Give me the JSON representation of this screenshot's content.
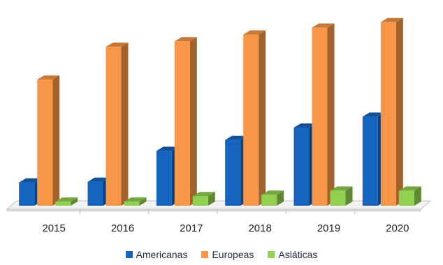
{
  "chart_data": {
    "type": "bar",
    "title": "",
    "xlabel": "",
    "ylabel": "",
    "categories": [
      "2015",
      "2016",
      "2017",
      "2018",
      "2019",
      "2020"
    ],
    "series": [
      {
        "name": "Americanas",
        "color": "#1565c0",
        "values": [
          34,
          35,
          80,
          96,
          114,
          130
        ]
      },
      {
        "name": "Europeas",
        "color": "#f79646",
        "values": [
          184,
          232,
          240,
          250,
          260,
          268
        ]
      },
      {
        "name": "Asiáticas",
        "color": "#92d050",
        "values": [
          6,
          6,
          14,
          16,
          22,
          22
        ]
      }
    ],
    "ylim": [
      0,
      280
    ],
    "grid": false,
    "legend_position": "bottom",
    "style": "3d-clustered-column"
  }
}
